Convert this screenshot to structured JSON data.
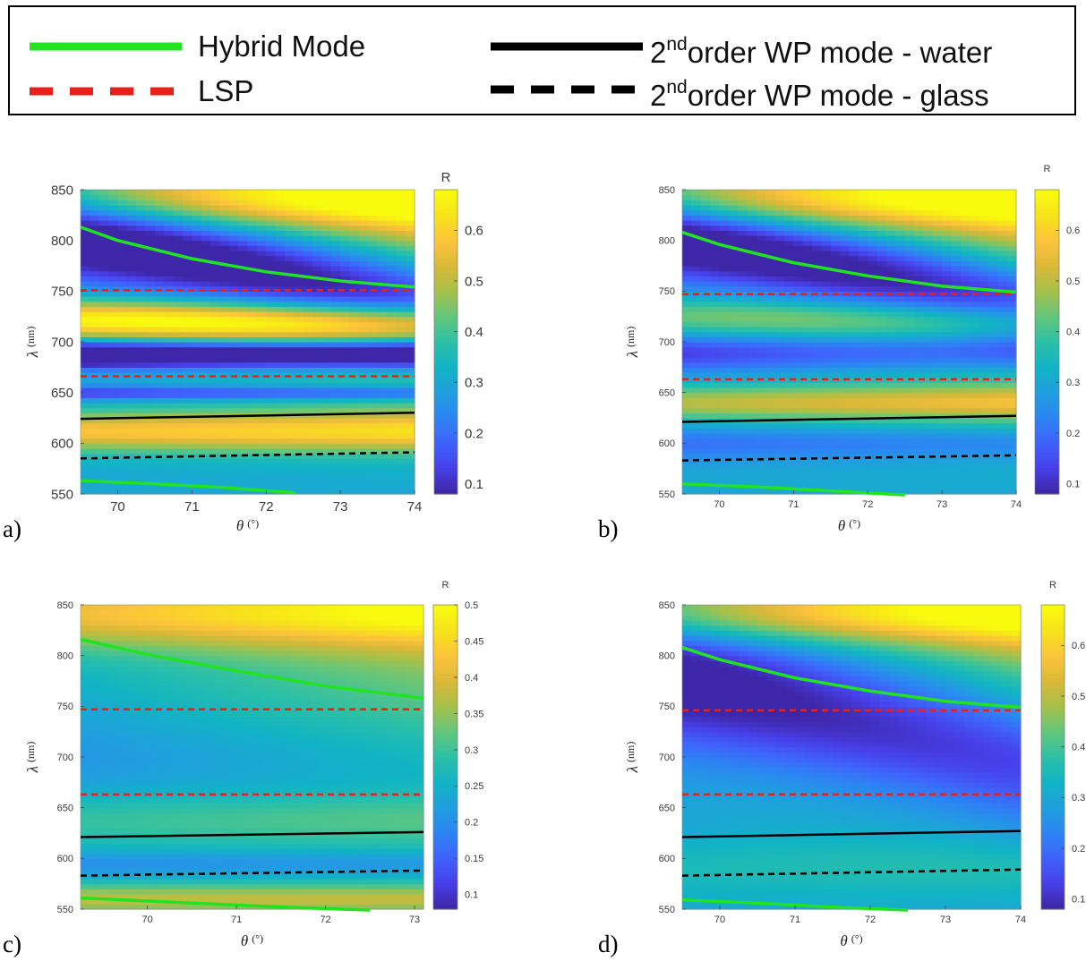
{
  "legend": {
    "items": [
      {
        "id": "hybrid",
        "label": "Hybrid Mode",
        "color": "#22e322",
        "dash": "solid"
      },
      {
        "id": "lsp",
        "label": "LSP",
        "color": "#e8201c",
        "dash": "dashed"
      },
      {
        "id": "wp-water",
        "sup": "nd",
        "label_pre": "2",
        "label_post": "order WP mode - water",
        "color": "#000000",
        "dash": "solid"
      },
      {
        "id": "wp-glass",
        "sup": "nd",
        "label_pre": "2",
        "label_post": "order WP mode - glass",
        "color": "#000000",
        "dash": "dashed"
      }
    ]
  },
  "colormap": "parula",
  "chart_data": [
    {
      "panel": "a)",
      "type": "heatmap",
      "xlabel": "θ",
      "xunit": "(°)",
      "ylabel": "λ",
      "yunit": "(nm)",
      "xlim": [
        69.5,
        74
      ],
      "ylim": [
        550,
        850
      ],
      "xticks": [
        70,
        71,
        72,
        73,
        74
      ],
      "yticks": [
        550,
        600,
        650,
        700,
        750,
        800,
        850
      ],
      "colorbar": {
        "title": "R",
        "min": 0.08,
        "max": 0.68,
        "ticks": [
          0.1,
          0.2,
          0.3,
          0.4,
          0.5,
          0.6
        ]
      },
      "field": {
        "bg": 0.3,
        "dips": [
          [
            808,
            740,
            32,
            0.72
          ],
          [
            688,
            688,
            9,
            0.82
          ],
          [
            650,
            650,
            5,
            0.35
          ]
        ],
        "peaks": [
          [
            842,
            842,
            22,
            0.25,
            0
          ],
          [
            722,
            718,
            14,
            0.38,
            0
          ],
          [
            612,
            612,
            14,
            0.28,
            0
          ]
        ],
        "ramp": 0.25
      },
      "series": [
        {
          "name": "Hybrid Mode",
          "x": [
            69.5,
            70,
            71,
            72,
            73,
            74
          ],
          "y": [
            813,
            800,
            782,
            769,
            760,
            754
          ]
        },
        {
          "name": "Hybrid Mode",
          "x": [
            69.5,
            70.5,
            71.5,
            72.4
          ],
          "y": [
            563,
            560,
            556,
            551
          ]
        },
        {
          "name": "LSP",
          "x": [
            69.5,
            74
          ],
          "y": [
            751,
            751
          ]
        },
        {
          "name": "LSP",
          "x": [
            69.5,
            74
          ],
          "y": [
            666,
            666
          ]
        },
        {
          "name": "2nd order WP mode - water",
          "x": [
            69.5,
            74
          ],
          "y": [
            624,
            630
          ]
        },
        {
          "name": "2nd order WP mode - glass",
          "x": [
            69.5,
            74
          ],
          "y": [
            585,
            591
          ]
        }
      ]
    },
    {
      "panel": "b)",
      "type": "heatmap",
      "xlabel": "θ",
      "xunit": "(°)",
      "ylabel": "λ",
      "yunit": "(nm)",
      "xlim": [
        69.5,
        74
      ],
      "ylim": [
        550,
        850
      ],
      "xticks": [
        70,
        71,
        72,
        73,
        74
      ],
      "yticks": [
        550,
        600,
        650,
        700,
        750,
        800,
        850
      ],
      "colorbar": {
        "title": "R",
        "min": 0.08,
        "max": 0.68,
        "ticks": [
          0.1,
          0.2,
          0.3,
          0.4,
          0.5,
          0.6
        ]
      },
      "field": {
        "bg": 0.3,
        "dips": [
          [
            805,
            740,
            30,
            0.68
          ],
          [
            690,
            690,
            14,
            0.35
          ],
          [
            600,
            600,
            12,
            0.2
          ]
        ],
        "peaks": [
          [
            842,
            842,
            22,
            0.25,
            0
          ],
          [
            725,
            720,
            14,
            0.15,
            0
          ],
          [
            640,
            640,
            12,
            0.2,
            0
          ]
        ],
        "ramp": 0.25
      },
      "series": [
        {
          "name": "Hybrid Mode",
          "x": [
            69.5,
            70,
            71,
            72,
            73,
            74
          ],
          "y": [
            808,
            796,
            778,
            765,
            755,
            749
          ]
        },
        {
          "name": "Hybrid Mode",
          "x": [
            69.5,
            70.5,
            71.5,
            72.5
          ],
          "y": [
            560,
            557,
            553,
            549
          ]
        },
        {
          "name": "LSP",
          "x": [
            69.5,
            74
          ],
          "y": [
            747,
            747
          ]
        },
        {
          "name": "LSP",
          "x": [
            69.5,
            74
          ],
          "y": [
            663,
            663
          ]
        },
        {
          "name": "2nd order WP mode - water",
          "x": [
            69.5,
            74
          ],
          "y": [
            621,
            627
          ]
        },
        {
          "name": "2nd order WP mode - glass",
          "x": [
            69.5,
            74
          ],
          "y": [
            583,
            588
          ]
        }
      ]
    },
    {
      "panel": "c)",
      "type": "heatmap",
      "xlabel": "θ",
      "xunit": "(°)",
      "ylabel": "λ",
      "yunit": "(nm)",
      "xlim": [
        69.25,
        73.1
      ],
      "ylim": [
        550,
        850
      ],
      "xticks": [
        70,
        71,
        72,
        73
      ],
      "yticks": [
        550,
        600,
        650,
        700,
        750,
        800,
        850
      ],
      "colorbar": {
        "title": "R",
        "min": 0.08,
        "max": 0.5,
        "ticks": [
          0.1,
          0.15,
          0.2,
          0.25,
          0.3,
          0.35,
          0.4,
          0.45,
          0.5
        ]
      },
      "field": {
        "bg": 0.26,
        "dips": [
          [
            700,
            690,
            40,
            0.1
          ],
          [
            595,
            595,
            10,
            0.12
          ]
        ],
        "peaks": [
          [
            842,
            842,
            24,
            0.16,
            0
          ],
          [
            640,
            640,
            18,
            0.05,
            0
          ],
          [
            560,
            560,
            10,
            0.12,
            0
          ]
        ],
        "ramp": 0.1
      },
      "series": [
        {
          "name": "Hybrid Mode",
          "x": [
            69.25,
            70,
            71,
            72,
            73.1
          ],
          "y": [
            816,
            801,
            785,
            770,
            758
          ]
        },
        {
          "name": "Hybrid Mode",
          "x": [
            69.25,
            70.5,
            71.5,
            72.5
          ],
          "y": [
            561,
            556,
            552,
            549
          ]
        },
        {
          "name": "LSP",
          "x": [
            69.25,
            73.1
          ],
          "y": [
            747,
            747
          ]
        },
        {
          "name": "LSP",
          "x": [
            69.25,
            73.1
          ],
          "y": [
            663,
            663
          ]
        },
        {
          "name": "2nd order WP mode - water",
          "x": [
            69.25,
            73.1
          ],
          "y": [
            621,
            626
          ]
        },
        {
          "name": "2nd order WP mode - glass",
          "x": [
            69.25,
            73.1
          ],
          "y": [
            583,
            588
          ]
        }
      ]
    },
    {
      "panel": "d)",
      "type": "heatmap",
      "xlabel": "θ",
      "xunit": "(°)",
      "ylabel": "λ",
      "yunit": "(nm)",
      "xlim": [
        69.5,
        74
      ],
      "ylim": [
        550,
        850
      ],
      "xticks": [
        70,
        71,
        72,
        73,
        74
      ],
      "yticks": [
        550,
        600,
        650,
        700,
        750,
        800,
        850
      ],
      "colorbar": {
        "title": "R",
        "min": 0.08,
        "max": 0.68,
        "ticks": [
          0.1,
          0.2,
          0.3,
          0.4,
          0.5,
          0.6
        ]
      },
      "field": {
        "bg": 0.3,
        "dips": [
          [
            780,
            700,
            50,
            0.55
          ]
        ],
        "peaks": [
          [
            842,
            842,
            22,
            0.25,
            0
          ],
          [
            590,
            590,
            20,
            0.05,
            0
          ]
        ],
        "ramp": 0.22
      },
      "series": [
        {
          "name": "Hybrid Mode",
          "x": [
            69.5,
            70,
            71,
            72,
            73,
            74
          ],
          "y": [
            808,
            796,
            778,
            765,
            755,
            749
          ]
        },
        {
          "name": "Hybrid Mode",
          "x": [
            69.5,
            70.5,
            71.5,
            72.5
          ],
          "y": [
            559,
            556,
            552,
            549
          ]
        },
        {
          "name": "LSP",
          "x": [
            69.5,
            74
          ],
          "y": [
            746,
            746
          ]
        },
        {
          "name": "LSP",
          "x": [
            69.5,
            74
          ],
          "y": [
            663,
            663
          ]
        },
        {
          "name": "2nd order WP mode - water",
          "x": [
            69.5,
            74
          ],
          "y": [
            621,
            627
          ]
        },
        {
          "name": "2nd order WP mode - glass",
          "x": [
            69.5,
            74
          ],
          "y": [
            583,
            589
          ]
        }
      ]
    }
  ]
}
